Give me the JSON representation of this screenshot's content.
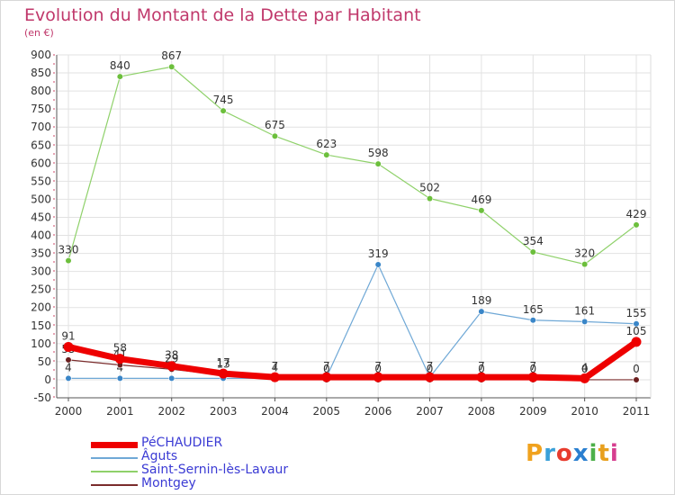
{
  "header": {
    "title": "Evolution du Montant de la Dette par Habitant",
    "unit": "(en €)"
  },
  "logo": {
    "text": "Proxiti",
    "colors": [
      "#f0a21e",
      "#3aa0d8",
      "#e83c2e",
      "#2a7fd0",
      "#4db04a",
      "#e8a01e",
      "#d63e8f"
    ]
  },
  "chart_data": {
    "type": "line",
    "categories": [
      "2000",
      "2001",
      "2002",
      "2003",
      "2004",
      "2005",
      "2006",
      "2007",
      "2008",
      "2009",
      "2010",
      "2011"
    ],
    "ylim": [
      -50,
      900
    ],
    "yticks": [
      -50,
      0,
      50,
      100,
      150,
      200,
      250,
      300,
      350,
      400,
      450,
      500,
      550,
      600,
      650,
      700,
      750,
      800,
      850,
      900
    ],
    "grid": true,
    "legend_position": "bottom-left",
    "series": [
      {
        "name": "Saint-Sernin-lès-Lavaur",
        "color": "#8fd16a",
        "marker": "#6cbf3c",
        "width": 1.2,
        "values": [
          330,
          840,
          867,
          745,
          675,
          623,
          598,
          502,
          469,
          354,
          320,
          429
        ],
        "labels": [
          "330",
          "840",
          "867",
          "745",
          "675",
          "623",
          "598",
          "502",
          "469",
          "354",
          "320",
          "429"
        ]
      },
      {
        "name": "Âguts",
        "color": "#6fa8d6",
        "marker": "#3a86c8",
        "width": 1.2,
        "values": [
          4,
          4,
          4,
          4,
          4,
          7,
          319,
          7,
          189,
          165,
          161,
          155
        ],
        "labels": [
          "4",
          "4",
          "4",
          "",
          "",
          "",
          "319",
          "",
          "189",
          "165",
          "161",
          "155"
        ]
      },
      {
        "name": "Montgey",
        "color": "#7a2c2c",
        "marker": "#6b1e1e",
        "width": 1.2,
        "values": [
          55,
          41,
          29,
          13,
          4,
          0,
          0,
          0,
          0,
          0,
          0,
          0
        ],
        "labels": [
          "55",
          "41",
          "29",
          "13",
          "4",
          "0",
          "0",
          "0",
          "0",
          "0",
          "0",
          "0"
        ]
      },
      {
        "name": "PéCHAUDIER",
        "color": "#ee0000",
        "marker": "#ee0000",
        "width": 7,
        "values": [
          91,
          58,
          38,
          17,
          7,
          7,
          7,
          7,
          7,
          7,
          4,
          105
        ],
        "labels": [
          "91",
          "58",
          "38",
          "17",
          "7",
          "7",
          "7",
          "7",
          "7",
          "7",
          "4",
          "105"
        ]
      }
    ],
    "legend": [
      {
        "name": "PéCHAUDIER",
        "color": "#ee0000",
        "thickness": 7
      },
      {
        "name": "Âguts",
        "color": "#6fa8d6",
        "thickness": 2
      },
      {
        "name": "Saint-Sernin-lès-Lavaur",
        "color": "#8fd16a",
        "thickness": 2
      },
      {
        "name": "Montgey",
        "color": "#7a2c2c",
        "thickness": 2
      }
    ]
  }
}
